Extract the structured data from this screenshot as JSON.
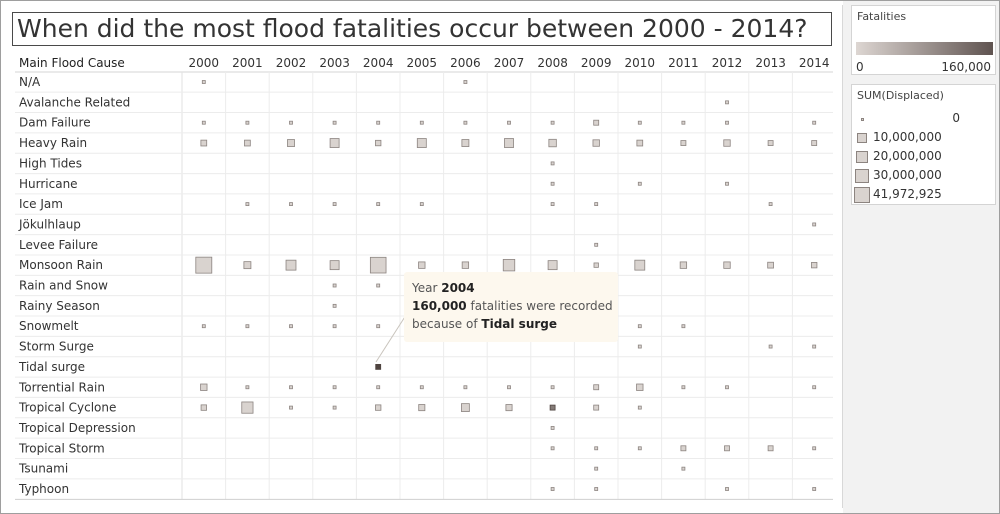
{
  "title": "When did the most flood fatalities occur between 2000 - 2014?",
  "colors": {
    "mark_fill": "#d9d3cf",
    "mark_stroke": "#8c8480",
    "highlight_fill": "#4f4440",
    "gradient_low": "#ddd6d2",
    "gradient_high": "#5f5350",
    "tooltip_bg": "#fdf8ee"
  },
  "legend_color": {
    "title": "Fatalities",
    "min_label": "0",
    "max_label": "160,000"
  },
  "legend_size": {
    "title": "SUM(Displaced)",
    "items": [
      {
        "label": "0",
        "value": 0
      },
      {
        "label": "10,000,000",
        "value": 10000000
      },
      {
        "label": "20,000,000",
        "value": 20000000
      },
      {
        "label": "30,000,000",
        "value": 30000000
      },
      {
        "label": "41,972,925",
        "value": 41972925
      }
    ]
  },
  "tooltip": {
    "year_prefix": "Year",
    "year_value": "2004",
    "fatal_value": "160,000",
    "fatal_suffix": "fatalities were recorded",
    "cause_prefix": "because of",
    "cause_value": "Tidal surge"
  },
  "chart_data": {
    "type": "table",
    "row_header": "Main Flood Cause",
    "columns": [
      "2000",
      "2001",
      "2002",
      "2003",
      "2004",
      "2005",
      "2006",
      "2007",
      "2008",
      "2009",
      "2010",
      "2011",
      "2012",
      "2013",
      "2014"
    ],
    "rows": [
      "N/A",
      "Avalanche Related",
      "Dam Failure",
      "Heavy Rain",
      "High Tides",
      "Hurricane",
      "Ice Jam",
      "Jökulhlaup",
      "Levee Failure",
      "Monsoon Rain",
      "Rain and Snow",
      "Rainy Season",
      "Snowmelt",
      "Storm Surge",
      "Tidal surge",
      "Torrential Rain",
      "Tropical Cyclone",
      "Tropical Depression",
      "Tropical Storm",
      "Tsunami",
      "Typhoon"
    ],
    "size_measure": "SUM(Displaced)",
    "color_measure": "Fatalities",
    "max_displaced": 41972925,
    "max_fatalities": 160000,
    "marks": [
      {
        "row": "N/A",
        "col": "2000",
        "displaced": 0
      },
      {
        "row": "N/A",
        "col": "2006",
        "displaced": 0
      },
      {
        "row": "Avalanche Related",
        "col": "2012",
        "displaced": 0
      },
      {
        "row": "Dam Failure",
        "col": "2000",
        "displaced": 0
      },
      {
        "row": "Dam Failure",
        "col": "2001",
        "displaced": 0
      },
      {
        "row": "Dam Failure",
        "col": "2002",
        "displaced": 0
      },
      {
        "row": "Dam Failure",
        "col": "2003",
        "displaced": 0
      },
      {
        "row": "Dam Failure",
        "col": "2004",
        "displaced": 0
      },
      {
        "row": "Dam Failure",
        "col": "2005",
        "displaced": 0
      },
      {
        "row": "Dam Failure",
        "col": "2006",
        "displaced": 0
      },
      {
        "row": "Dam Failure",
        "col": "2007",
        "displaced": 0
      },
      {
        "row": "Dam Failure",
        "col": "2008",
        "displaced": 0
      },
      {
        "row": "Dam Failure",
        "col": "2009",
        "displaced": 1000000
      },
      {
        "row": "Dam Failure",
        "col": "2010",
        "displaced": 0
      },
      {
        "row": "Dam Failure",
        "col": "2011",
        "displaced": 0
      },
      {
        "row": "Dam Failure",
        "col": "2012",
        "displaced": 0
      },
      {
        "row": "Dam Failure",
        "col": "2014",
        "displaced": 0
      },
      {
        "row": "Heavy Rain",
        "col": "2000",
        "displaced": 2000000
      },
      {
        "row": "Heavy Rain",
        "col": "2001",
        "displaced": 2000000
      },
      {
        "row": "Heavy Rain",
        "col": "2002",
        "displaced": 4000000
      },
      {
        "row": "Heavy Rain",
        "col": "2003",
        "displaced": 9000000
      },
      {
        "row": "Heavy Rain",
        "col": "2004",
        "displaced": 1500000
      },
      {
        "row": "Heavy Rain",
        "col": "2005",
        "displaced": 9000000
      },
      {
        "row": "Heavy Rain",
        "col": "2006",
        "displaced": 4000000
      },
      {
        "row": "Heavy Rain",
        "col": "2007",
        "displaced": 9000000
      },
      {
        "row": "Heavy Rain",
        "col": "2008",
        "displaced": 5000000
      },
      {
        "row": "Heavy Rain",
        "col": "2009",
        "displaced": 3000000
      },
      {
        "row": "Heavy Rain",
        "col": "2010",
        "displaced": 2000000
      },
      {
        "row": "Heavy Rain",
        "col": "2011",
        "displaced": 1000000
      },
      {
        "row": "Heavy Rain",
        "col": "2012",
        "displaced": 3000000
      },
      {
        "row": "Heavy Rain",
        "col": "2013",
        "displaced": 1000000
      },
      {
        "row": "Heavy Rain",
        "col": "2014",
        "displaced": 1000000
      },
      {
        "row": "High Tides",
        "col": "2008",
        "displaced": 0
      },
      {
        "row": "Hurricane",
        "col": "2008",
        "displaced": 0
      },
      {
        "row": "Hurricane",
        "col": "2010",
        "displaced": 0
      },
      {
        "row": "Hurricane",
        "col": "2012",
        "displaced": 0
      },
      {
        "row": "Ice Jam",
        "col": "2001",
        "displaced": 0
      },
      {
        "row": "Ice Jam",
        "col": "2002",
        "displaced": 0
      },
      {
        "row": "Ice Jam",
        "col": "2003",
        "displaced": 0
      },
      {
        "row": "Ice Jam",
        "col": "2004",
        "displaced": 0
      },
      {
        "row": "Ice Jam",
        "col": "2005",
        "displaced": 0
      },
      {
        "row": "Ice Jam",
        "col": "2008",
        "displaced": 0
      },
      {
        "row": "Ice Jam",
        "col": "2009",
        "displaced": 0
      },
      {
        "row": "Ice Jam",
        "col": "2013",
        "displaced": 0
      },
      {
        "row": "Jökulhlaup",
        "col": "2014",
        "displaced": 0
      },
      {
        "row": "Levee Failure",
        "col": "2009",
        "displaced": 0
      },
      {
        "row": "Monsoon Rain",
        "col": "2000",
        "displaced": 41972925
      },
      {
        "row": "Monsoon Rain",
        "col": "2001",
        "displaced": 4000000
      },
      {
        "row": "Monsoon Rain",
        "col": "2002",
        "displaced": 12000000
      },
      {
        "row": "Monsoon Rain",
        "col": "2003",
        "displaced": 9000000
      },
      {
        "row": "Monsoon Rain",
        "col": "2004",
        "displaced": 40000000
      },
      {
        "row": "Monsoon Rain",
        "col": "2005",
        "displaced": 3000000
      },
      {
        "row": "Monsoon Rain",
        "col": "2006",
        "displaced": 3000000
      },
      {
        "row": "Monsoon Rain",
        "col": "2007",
        "displaced": 18000000
      },
      {
        "row": "Monsoon Rain",
        "col": "2008",
        "displaced": 9000000
      },
      {
        "row": "Monsoon Rain",
        "col": "2009",
        "displaced": 500000
      },
      {
        "row": "Monsoon Rain",
        "col": "2010",
        "displaced": 12000000
      },
      {
        "row": "Monsoon Rain",
        "col": "2011",
        "displaced": 3000000
      },
      {
        "row": "Monsoon Rain",
        "col": "2012",
        "displaced": 3000000
      },
      {
        "row": "Monsoon Rain",
        "col": "2013",
        "displaced": 2000000
      },
      {
        "row": "Monsoon Rain",
        "col": "2014",
        "displaced": 1500000
      },
      {
        "row": "Rain and Snow",
        "col": "2003",
        "displaced": 0
      },
      {
        "row": "Rain and Snow",
        "col": "2004",
        "displaced": 0
      },
      {
        "row": "Rainy Season",
        "col": "2003",
        "displaced": 0
      },
      {
        "row": "Snowmelt",
        "col": "2000",
        "displaced": 0
      },
      {
        "row": "Snowmelt",
        "col": "2001",
        "displaced": 0
      },
      {
        "row": "Snowmelt",
        "col": "2002",
        "displaced": 0
      },
      {
        "row": "Snowmelt",
        "col": "2003",
        "displaced": 0
      },
      {
        "row": "Snowmelt",
        "col": "2004",
        "displaced": 0
      },
      {
        "row": "Snowmelt",
        "col": "2010",
        "displaced": 0
      },
      {
        "row": "Snowmelt",
        "col": "2011",
        "displaced": 0
      },
      {
        "row": "Storm Surge",
        "col": "2010",
        "displaced": 0
      },
      {
        "row": "Storm Surge",
        "col": "2013",
        "displaced": 0
      },
      {
        "row": "Storm Surge",
        "col": "2014",
        "displaced": 0
      },
      {
        "row": "Tidal surge",
        "col": "2004",
        "displaced": 0,
        "fatalities": 160000
      },
      {
        "row": "Torrential Rain",
        "col": "2000",
        "displaced": 3000000
      },
      {
        "row": "Torrential Rain",
        "col": "2001",
        "displaced": 0
      },
      {
        "row": "Torrential Rain",
        "col": "2002",
        "displaced": 0
      },
      {
        "row": "Torrential Rain",
        "col": "2003",
        "displaced": 0
      },
      {
        "row": "Torrential Rain",
        "col": "2004",
        "displaced": 0
      },
      {
        "row": "Torrential Rain",
        "col": "2005",
        "displaced": 0
      },
      {
        "row": "Torrential Rain",
        "col": "2006",
        "displaced": 0
      },
      {
        "row": "Torrential Rain",
        "col": "2007",
        "displaced": 0
      },
      {
        "row": "Torrential Rain",
        "col": "2008",
        "displaced": 0
      },
      {
        "row": "Torrential Rain",
        "col": "2009",
        "displaced": 1000000
      },
      {
        "row": "Torrential Rain",
        "col": "2010",
        "displaced": 3000000
      },
      {
        "row": "Torrential Rain",
        "col": "2011",
        "displaced": 0
      },
      {
        "row": "Torrential Rain",
        "col": "2012",
        "displaced": 0
      },
      {
        "row": "Torrential Rain",
        "col": "2014",
        "displaced": 0
      },
      {
        "row": "Tropical Cyclone",
        "col": "2000",
        "displaced": 1500000
      },
      {
        "row": "Tropical Cyclone",
        "col": "2001",
        "displaced": 17000000
      },
      {
        "row": "Tropical Cyclone",
        "col": "2002",
        "displaced": 0
      },
      {
        "row": "Tropical Cyclone",
        "col": "2003",
        "displaced": 0
      },
      {
        "row": "Tropical Cyclone",
        "col": "2004",
        "displaced": 1500000
      },
      {
        "row": "Tropical Cyclone",
        "col": "2005",
        "displaced": 2500000
      },
      {
        "row": "Tropical Cyclone",
        "col": "2006",
        "displaced": 6000000
      },
      {
        "row": "Tropical Cyclone",
        "col": "2007",
        "displaced": 2500000
      },
      {
        "row": "Tropical Cyclone",
        "col": "2008",
        "displaced": 1000000,
        "fatalities": 100000
      },
      {
        "row": "Tropical Cyclone",
        "col": "2009",
        "displaced": 1000000
      },
      {
        "row": "Tropical Cyclone",
        "col": "2010",
        "displaced": 0
      },
      {
        "row": "Tropical Depression",
        "col": "2008",
        "displaced": 0
      },
      {
        "row": "Tropical Storm",
        "col": "2008",
        "displaced": 0
      },
      {
        "row": "Tropical Storm",
        "col": "2009",
        "displaced": 0
      },
      {
        "row": "Tropical Storm",
        "col": "2010",
        "displaced": 0
      },
      {
        "row": "Tropical Storm",
        "col": "2011",
        "displaced": 1000000
      },
      {
        "row": "Tropical Storm",
        "col": "2012",
        "displaced": 1000000
      },
      {
        "row": "Tropical Storm",
        "col": "2013",
        "displaced": 1000000
      },
      {
        "row": "Tropical Storm",
        "col": "2014",
        "displaced": 0
      },
      {
        "row": "Tsunami",
        "col": "2009",
        "displaced": 0
      },
      {
        "row": "Tsunami",
        "col": "2011",
        "displaced": 0
      },
      {
        "row": "Typhoon",
        "col": "2008",
        "displaced": 0
      },
      {
        "row": "Typhoon",
        "col": "2009",
        "displaced": 0
      },
      {
        "row": "Typhoon",
        "col": "2012",
        "displaced": 0
      },
      {
        "row": "Typhoon",
        "col": "2014",
        "displaced": 0
      }
    ]
  }
}
